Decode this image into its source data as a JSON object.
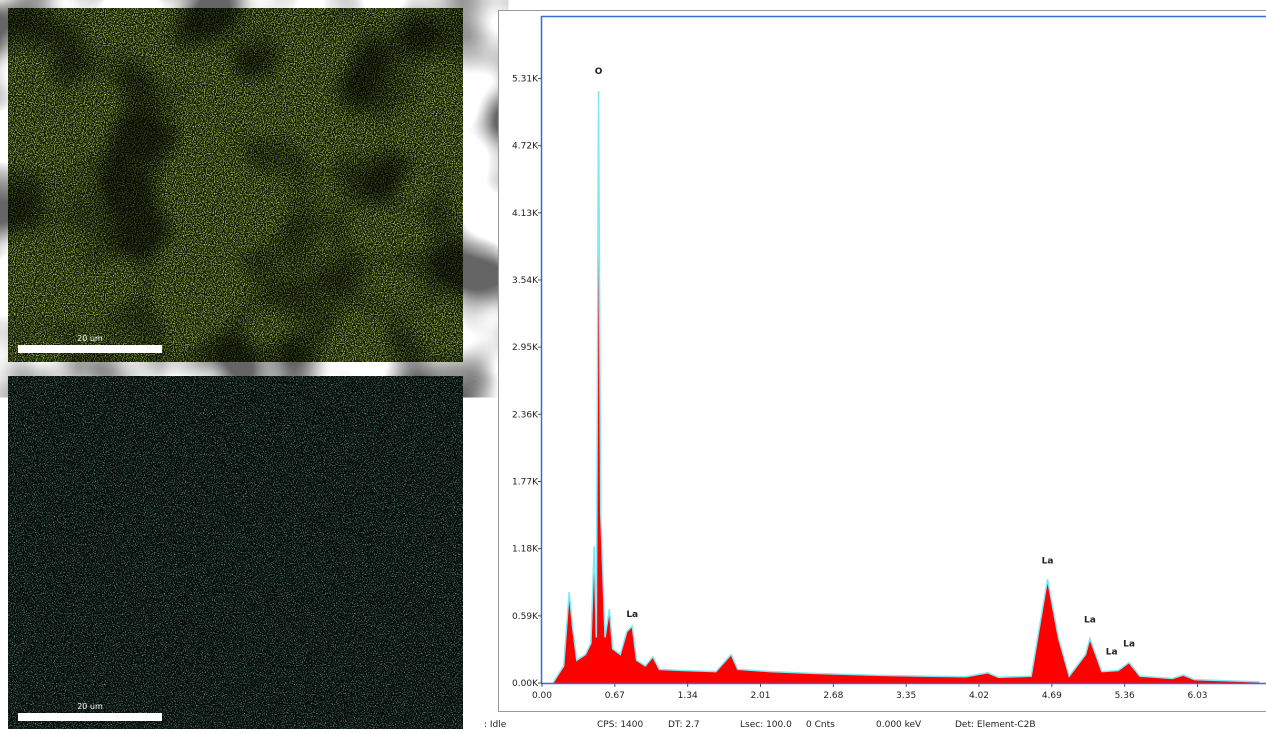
{
  "maps": [
    {
      "scale_label": "20 um"
    },
    {
      "scale_label": "20 um"
    }
  ],
  "chart_data": {
    "type": "area",
    "color": "#ff0000",
    "outline_color": "#7fe8f5",
    "axis_color": "#2f6fd6",
    "x": [
      0.1,
      0.2,
      0.25,
      0.28,
      0.32,
      0.4,
      0.45,
      0.48,
      0.5,
      0.52,
      0.54,
      0.58,
      0.62,
      0.65,
      0.72,
      0.78,
      0.83,
      0.87,
      0.95,
      1.02,
      1.08,
      1.3,
      1.6,
      1.74,
      1.8,
      2.1,
      2.5,
      3.0,
      3.5,
      3.9,
      4.1,
      4.2,
      4.5,
      4.65,
      4.75,
      4.85,
      5.0,
      5.04,
      5.15,
      5.3,
      5.4,
      5.5,
      5.8,
      5.9,
      6.0,
      6.3,
      6.6
    ],
    "values": [
      0,
      150,
      800,
      500,
      200,
      250,
      350,
      1200,
      400,
      5200,
      1500,
      400,
      650,
      300,
      250,
      450,
      500,
      200,
      150,
      230,
      120,
      110,
      100,
      250,
      120,
      100,
      85,
      70,
      60,
      55,
      90,
      50,
      60,
      910,
      400,
      60,
      250,
      390,
      100,
      110,
      180,
      60,
      40,
      70,
      30,
      20,
      10
    ],
    "xlim": [
      0,
      6.66
    ],
    "ylim": [
      0,
      5850
    ],
    "xticks": [
      {
        "value": 0,
        "label": "0.00"
      },
      0.67,
      1.34,
      2.01,
      2.68,
      3.35,
      4.02,
      4.69,
      5.36,
      6.03
    ],
    "yticks": [
      {
        "value": 0,
        "label": "0.00K"
      },
      {
        "value": 590,
        "label": "0.59K"
      },
      {
        "value": 1180,
        "label": "1.18K"
      },
      {
        "value": 1770,
        "label": "1.77K"
      },
      {
        "value": 2360,
        "label": "2.36K"
      },
      {
        "value": 2950,
        "label": "2.95K"
      },
      {
        "value": 3540,
        "label": "3.54K"
      },
      {
        "value": 4130,
        "label": "4.13K"
      },
      {
        "value": 4720,
        "label": "4.72K"
      },
      {
        "value": 5310,
        "label": "5.31K"
      }
    ],
    "annotations": [
      {
        "text": "O",
        "x": 0.52,
        "y": 5350
      },
      {
        "text": "La",
        "x": 0.83,
        "y": 580
      },
      {
        "text": "La",
        "x": 4.65,
        "y": 1050
      },
      {
        "text": "La",
        "x": 5.04,
        "y": 530
      },
      {
        "text": "La",
        "x": 5.24,
        "y": 250
      },
      {
        "text": "La",
        "x": 5.4,
        "y": 320
      }
    ]
  },
  "status_bar": [
    ": Idle",
    "CPS: 1400",
    "DT: 2.7",
    "Lsec: 100.0",
    "0 Cnts",
    "0.000 keV",
    "Det: Element-C2B"
  ]
}
